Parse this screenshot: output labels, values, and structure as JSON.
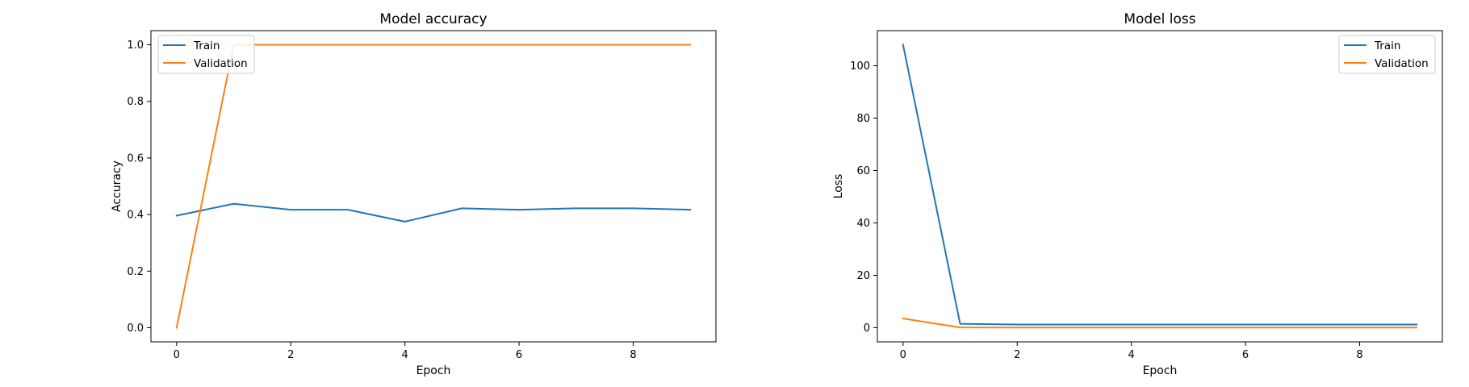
{
  "colors": {
    "train": "#1f77b4",
    "validation": "#ff7f0e",
    "frame": "#000000",
    "background": "#ffffff"
  },
  "chart_data": [
    {
      "type": "line",
      "title": "Model accuracy",
      "xlabel": "Epoch",
      "ylabel": "Accuracy",
      "xlim": [
        -0.45,
        9.45
      ],
      "ylim": [
        -0.05,
        1.05
      ],
      "xticks": [
        0,
        2,
        4,
        6,
        8
      ],
      "yticks": [
        0.0,
        0.2,
        0.4,
        0.6,
        0.8,
        1.0
      ],
      "ytick_labels": [
        "0.0",
        "0.2",
        "0.4",
        "0.6",
        "0.8",
        "1.0"
      ],
      "grid": false,
      "legend_position": "upper left",
      "x": [
        0,
        1,
        2,
        3,
        4,
        5,
        6,
        7,
        8,
        9
      ],
      "series": [
        {
          "name": "Train",
          "values": [
            0.396,
            0.438,
            0.417,
            0.417,
            0.375,
            0.422,
            0.417,
            0.422,
            0.422,
            0.417
          ]
        },
        {
          "name": "Validation",
          "values": [
            0.0,
            1.0,
            1.0,
            1.0,
            1.0,
            1.0,
            1.0,
            1.0,
            1.0,
            1.0
          ]
        }
      ]
    },
    {
      "type": "line",
      "title": "Model loss",
      "xlabel": "Epoch",
      "ylabel": "Loss",
      "xlim": [
        -0.45,
        9.45
      ],
      "ylim": [
        -5.4,
        113.4
      ],
      "xticks": [
        0,
        2,
        4,
        6,
        8
      ],
      "yticks": [
        0,
        20,
        40,
        60,
        80,
        100
      ],
      "ytick_labels": [
        "0",
        "20",
        "40",
        "60",
        "80",
        "100"
      ],
      "grid": false,
      "legend_position": "upper right",
      "x": [
        0,
        1,
        2,
        3,
        4,
        5,
        6,
        7,
        8,
        9
      ],
      "series": [
        {
          "name": "Train",
          "values": [
            108,
            1.5,
            1.2,
            1.2,
            1.2,
            1.2,
            1.2,
            1.2,
            1.2,
            1.2
          ]
        },
        {
          "name": "Validation",
          "values": [
            3.5,
            0.1,
            0.05,
            0.05,
            0.05,
            0.05,
            0.05,
            0.05,
            0.05,
            0.05
          ]
        }
      ]
    }
  ]
}
